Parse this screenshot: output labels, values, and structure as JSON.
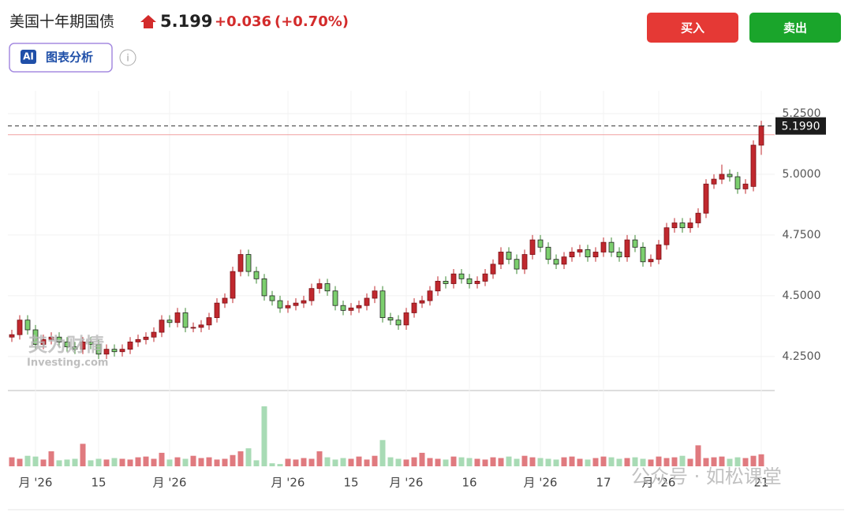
{
  "header": {
    "title": "美国十年期国债",
    "price": "5.199",
    "change": "+0.036",
    "change_pct": "(+0.70%)",
    "ai_badge": "AI",
    "ai_button": "图表分析",
    "info": "i"
  },
  "buttons": {
    "buy": "买入",
    "sell": "卖出"
  },
  "watermarks": {
    "cn": "英为财情",
    "en": "Investing.com",
    "wechat": "公众号 · 如松课堂"
  },
  "chart_data": {
    "type": "candlestick",
    "categories": [
      null,
      null,
      null,
      "月 '26",
      null,
      null,
      null,
      null,
      null,
      null,
      null,
      "15",
      null,
      null,
      null,
      null,
      null,
      null,
      null,
      null,
      "月 '26",
      null,
      null,
      null,
      null,
      null,
      null,
      null,
      null,
      null,
      null,
      null,
      null,
      null,
      null,
      "月 '26",
      null,
      null,
      null,
      null,
      null,
      null,
      null,
      "15",
      null,
      null,
      null,
      null,
      null,
      null,
      "月 '26",
      null,
      null,
      null,
      null,
      null,
      null,
      null,
      "16",
      null,
      null,
      null,
      null,
      null,
      null,
      null,
      null,
      "月 '26",
      null,
      null,
      null,
      null,
      null,
      null,
      null,
      "17",
      null,
      null,
      null,
      null,
      null,
      null,
      "月 '26",
      null,
      null,
      null,
      null,
      null,
      null,
      null,
      null,
      null,
      null,
      null,
      null,
      "21"
    ],
    "open": [
      4.33,
      4.34,
      4.4,
      4.36,
      4.3,
      4.32,
      4.33,
      4.31,
      4.29,
      4.28,
      4.31,
      4.3,
      4.26,
      4.28,
      4.27,
      4.28,
      4.31,
      4.32,
      4.33,
      4.35,
      4.4,
      4.39,
      4.43,
      4.37,
      4.37,
      4.38,
      4.41,
      4.47,
      4.49,
      4.6,
      4.67,
      4.6,
      4.57,
      4.5,
      4.48,
      4.45,
      4.46,
      4.47,
      4.48,
      4.53,
      4.55,
      4.52,
      4.46,
      4.44,
      4.45,
      4.46,
      4.49,
      4.52,
      4.41,
      4.4,
      4.38,
      4.43,
      4.47,
      4.48,
      4.52,
      4.56,
      4.55,
      4.59,
      4.57,
      4.55,
      4.56,
      4.59,
      4.63,
      4.68,
      4.65,
      4.61,
      4.67,
      4.73,
      4.7,
      4.65,
      4.63,
      4.66,
      4.68,
      4.69,
      4.66,
      4.68,
      4.72,
      4.68,
      4.66,
      4.73,
      4.7,
      4.64,
      4.65,
      4.71,
      4.78,
      4.8,
      4.78,
      4.8,
      4.84,
      4.96,
      4.98,
      5.0,
      4.99,
      4.94,
      4.95,
      5.12
    ],
    "high": [
      4.36,
      4.42,
      4.42,
      4.38,
      4.34,
      4.35,
      4.35,
      4.33,
      4.31,
      4.33,
      4.33,
      4.32,
      4.3,
      4.3,
      4.3,
      4.33,
      4.34,
      4.35,
      4.37,
      4.42,
      4.42,
      4.45,
      4.45,
      4.39,
      4.4,
      4.43,
      4.49,
      4.51,
      4.62,
      4.69,
      4.69,
      4.62,
      4.59,
      4.52,
      4.5,
      4.48,
      4.49,
      4.5,
      4.55,
      4.57,
      4.57,
      4.54,
      4.48,
      4.47,
      4.48,
      4.51,
      4.54,
      4.54,
      4.43,
      4.42,
      4.45,
      4.49,
      4.5,
      4.54,
      4.58,
      4.58,
      4.61,
      4.61,
      4.59,
      4.58,
      4.61,
      4.65,
      4.7,
      4.7,
      4.67,
      4.69,
      4.75,
      4.75,
      4.72,
      4.67,
      4.68,
      4.7,
      4.71,
      4.71,
      4.7,
      4.74,
      4.74,
      4.7,
      4.75,
      4.75,
      4.72,
      4.67,
      4.73,
      4.8,
      4.82,
      4.82,
      4.82,
      4.86,
      4.98,
      5.0,
      5.04,
      5.02,
      5.01,
      4.98,
      5.14,
      5.22
    ],
    "low": [
      4.31,
      4.32,
      4.34,
      4.28,
      4.28,
      4.3,
      4.29,
      4.27,
      4.26,
      4.26,
      4.28,
      4.24,
      4.24,
      4.25,
      4.25,
      4.26,
      4.29,
      4.3,
      4.31,
      4.33,
      4.37,
      4.37,
      4.35,
      4.35,
      4.35,
      4.36,
      4.39,
      4.45,
      4.47,
      4.58,
      4.58,
      4.55,
      4.48,
      4.46,
      4.43,
      4.43,
      4.44,
      4.45,
      4.46,
      4.51,
      4.5,
      4.44,
      4.42,
      4.42,
      4.43,
      4.44,
      4.47,
      4.39,
      4.38,
      4.36,
      4.36,
      4.41,
      4.45,
      4.46,
      4.5,
      4.53,
      4.53,
      4.55,
      4.53,
      4.53,
      4.54,
      4.57,
      4.61,
      4.63,
      4.59,
      4.59,
      4.65,
      4.68,
      4.63,
      4.61,
      4.61,
      4.64,
      4.66,
      4.64,
      4.64,
      4.66,
      4.66,
      4.64,
      4.64,
      4.68,
      4.62,
      4.62,
      4.63,
      4.69,
      4.76,
      4.76,
      4.76,
      4.78,
      4.82,
      4.94,
      4.96,
      4.97,
      4.92,
      4.92,
      4.93,
      5.08
    ],
    "close": [
      4.34,
      4.4,
      4.36,
      4.3,
      4.32,
      4.33,
      4.31,
      4.29,
      4.28,
      4.31,
      4.3,
      4.26,
      4.28,
      4.27,
      4.28,
      4.31,
      4.32,
      4.33,
      4.35,
      4.4,
      4.39,
      4.43,
      4.37,
      4.37,
      4.38,
      4.41,
      4.47,
      4.49,
      4.6,
      4.67,
      4.6,
      4.57,
      4.5,
      4.48,
      4.45,
      4.46,
      4.47,
      4.48,
      4.53,
      4.55,
      4.52,
      4.46,
      4.44,
      4.45,
      4.46,
      4.49,
      4.52,
      4.41,
      4.4,
      4.38,
      4.43,
      4.47,
      4.48,
      4.52,
      4.56,
      4.55,
      4.59,
      4.57,
      4.55,
      4.56,
      4.59,
      4.63,
      4.68,
      4.65,
      4.61,
      4.67,
      4.73,
      4.7,
      4.65,
      4.63,
      4.66,
      4.68,
      4.69,
      4.66,
      4.68,
      4.72,
      4.68,
      4.66,
      4.73,
      4.7,
      4.64,
      4.65,
      4.71,
      4.78,
      4.8,
      4.78,
      4.8,
      4.84,
      4.96,
      4.98,
      5.0,
      4.99,
      4.94,
      4.96,
      5.12,
      5.199
    ],
    "volume": [
      12,
      10,
      14,
      13,
      9,
      20,
      8,
      9,
      10,
      30,
      8,
      10,
      9,
      11,
      10,
      9,
      12,
      13,
      10,
      18,
      9,
      12,
      10,
      14,
      11,
      12,
      9,
      10,
      15,
      20,
      24,
      8,
      80,
      4,
      3,
      10,
      9,
      11,
      10,
      20,
      12,
      9,
      11,
      10,
      13,
      9,
      14,
      35,
      12,
      10,
      9,
      12,
      18,
      11,
      10,
      9,
      13,
      12,
      11,
      10,
      9,
      12,
      11,
      13,
      10,
      14,
      12,
      11,
      10,
      9,
      12,
      13,
      10,
      9,
      11,
      13,
      12,
      10,
      11,
      12,
      10,
      9,
      13,
      11,
      12,
      14,
      10,
      28,
      11,
      12,
      13,
      10,
      12,
      11,
      14,
      16
    ],
    "up_color": "#c0282e",
    "down_color": "#7ccf6e",
    "ylim": [
      4.11,
      5.344
    ],
    "yticks": [
      {
        "value": 4.25,
        "label": "4.2500"
      },
      {
        "value": 4.5,
        "label": "4.5000"
      },
      {
        "value": 4.75,
        "label": "4.7500"
      },
      {
        "value": 5.0,
        "label": "5.0000"
      },
      {
        "value": 5.25,
        "label": "5.2500"
      }
    ],
    "last_price": {
      "value": 5.199,
      "label": "5.1990"
    },
    "prev_close": 5.163,
    "grid": true
  }
}
